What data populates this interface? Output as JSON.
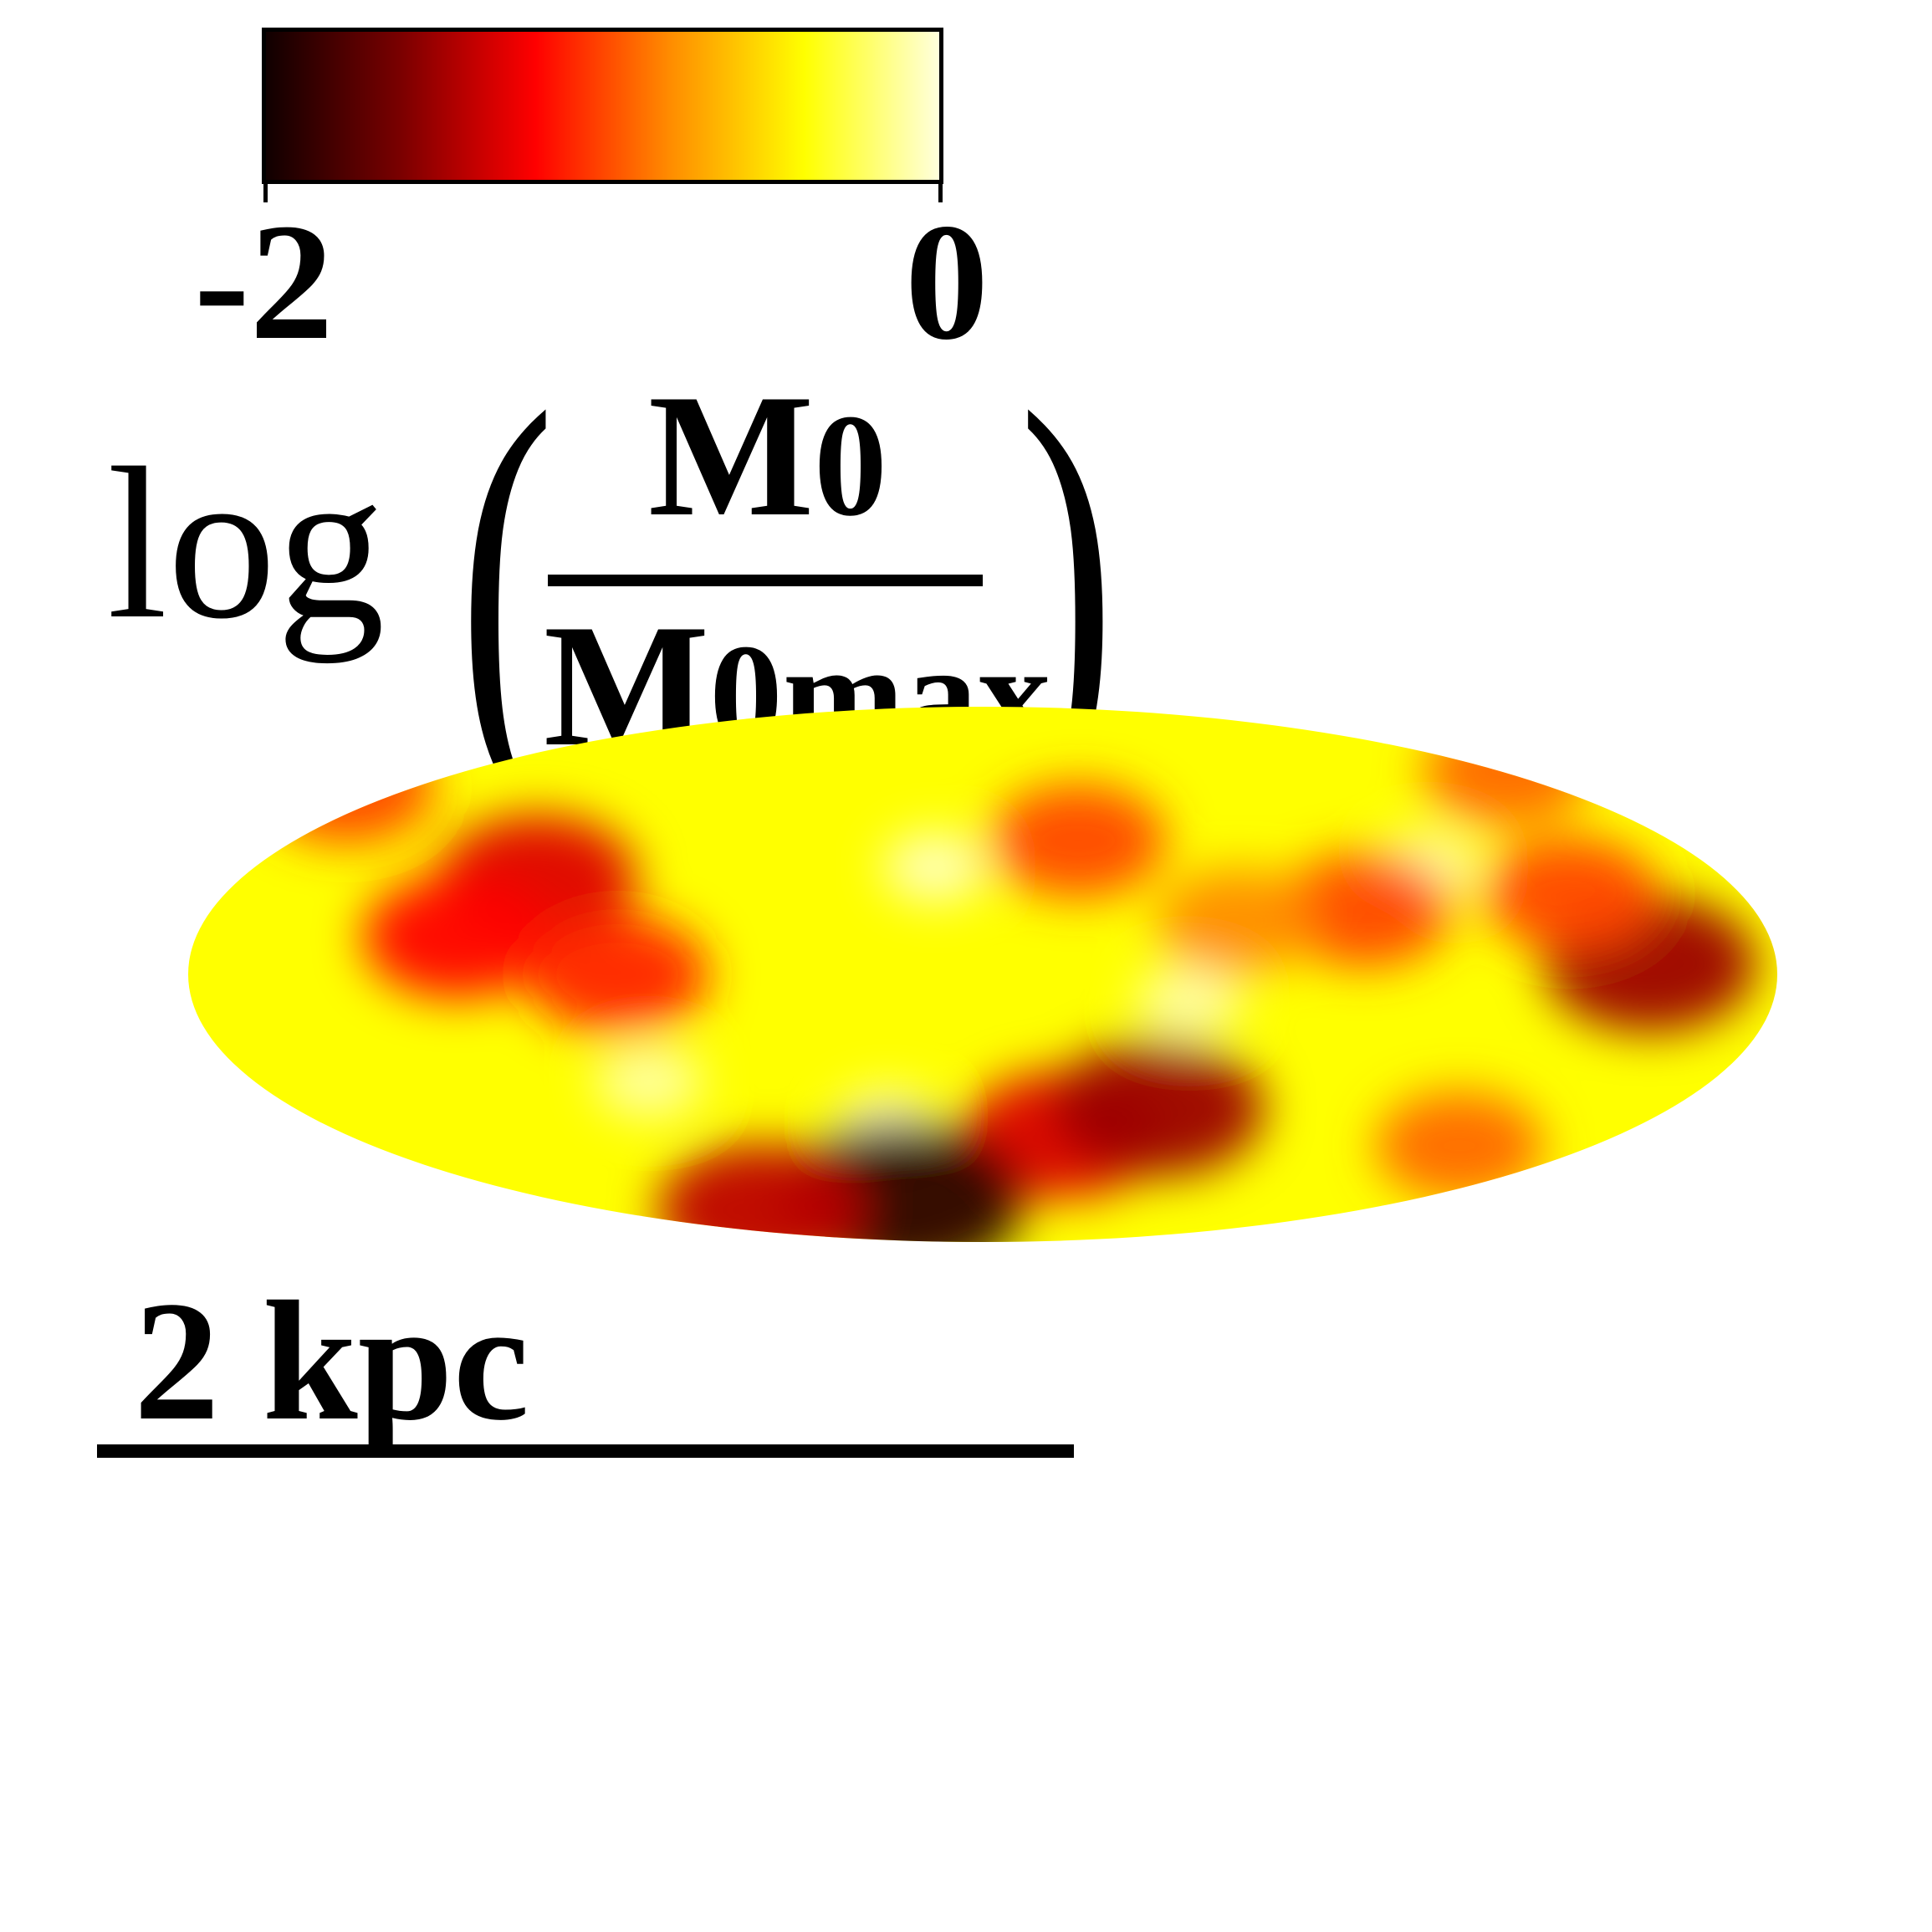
{
  "chart_data": {
    "type": "heatmap",
    "colorbar": {
      "min_label": "-2",
      "max_label": "0",
      "range": [
        -2,
        0
      ],
      "colormap": "hot",
      "colors": [
        "#100000",
        "#7a0000",
        "#ff0000",
        "#ff8c00",
        "#ffff00",
        "#ffffdd"
      ]
    },
    "label": {
      "prefix": "log",
      "numerator": "M",
      "numerator_sub": "0",
      "denominator": "M",
      "denominator_sub": "0max"
    },
    "blobs": [
      {
        "x": 0.47,
        "y": 0.3,
        "value": -0.05
      },
      {
        "x": 0.78,
        "y": 0.3,
        "value": -0.1
      },
      {
        "x": 0.44,
        "y": 0.78,
        "value": -0.05
      },
      {
        "x": 0.29,
        "y": 0.7,
        "value": -0.1
      },
      {
        "x": 0.63,
        "y": 0.55,
        "value": -0.1
      },
      {
        "x": 0.22,
        "y": 0.32,
        "value": -1.3
      },
      {
        "x": 0.17,
        "y": 0.43,
        "value": -1.2
      },
      {
        "x": 0.27,
        "y": 0.5,
        "value": -1.1
      },
      {
        "x": 0.55,
        "y": 0.8,
        "value": -1.3
      },
      {
        "x": 0.61,
        "y": 0.75,
        "value": -1.5
      },
      {
        "x": 0.45,
        "y": 0.92,
        "value": -1.9
      },
      {
        "x": 0.36,
        "y": 0.94,
        "value": -1.4
      },
      {
        "x": 0.92,
        "y": 0.48,
        "value": -1.5
      },
      {
        "x": 0.87,
        "y": 0.35,
        "value": -1.0
      },
      {
        "x": 0.8,
        "y": 0.82,
        "value": -0.9
      },
      {
        "x": 0.56,
        "y": 0.25,
        "value": -1.0
      },
      {
        "x": 0.74,
        "y": 0.38,
        "value": -1.0
      },
      {
        "x": 0.66,
        "y": 0.4,
        "value": -0.8
      },
      {
        "x": 0.1,
        "y": 0.15,
        "value": -1.0
      },
      {
        "x": 0.83,
        "y": 0.12,
        "value": -0.9
      }
    ],
    "scale_bar": {
      "label": "2 kpc"
    }
  }
}
